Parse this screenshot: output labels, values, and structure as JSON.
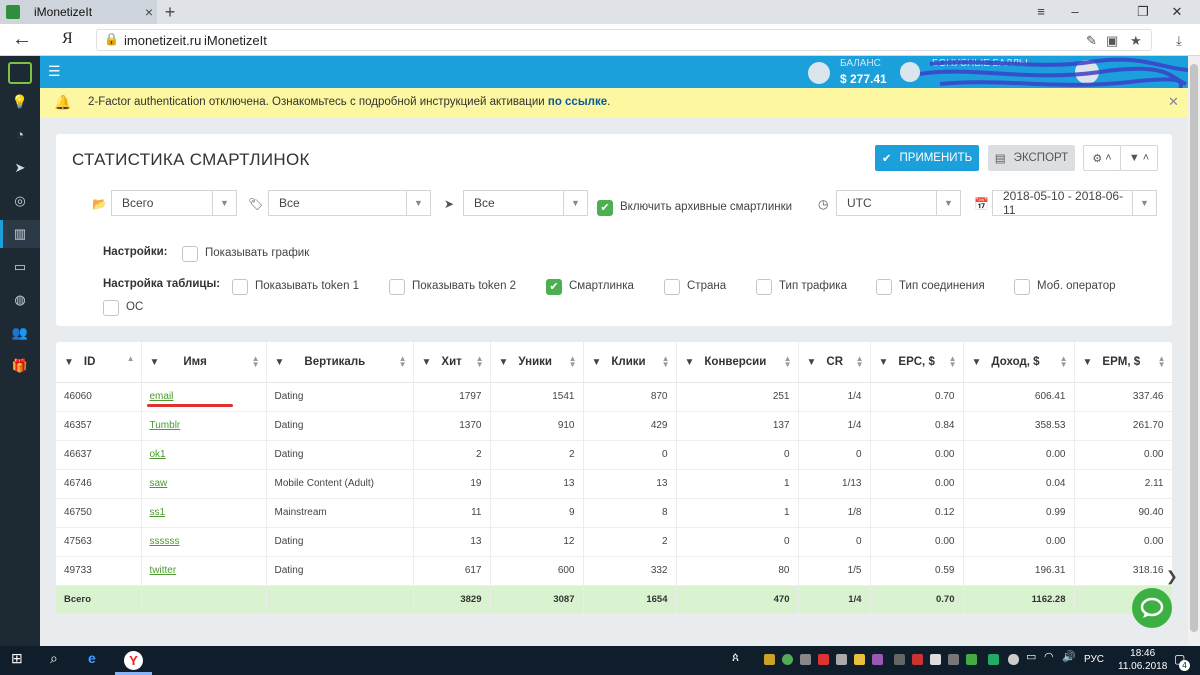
{
  "browser": {
    "tab_title": "iMonetizeIt",
    "url_domain": "imonetizeit.ru",
    "url_title": "iMonetizeIt",
    "yandex_label": "Я"
  },
  "topbar": {
    "balance_label": "БАЛАНС",
    "balance_value": "$ 277.41",
    "bonus_label": "БОНУСНЫЕ БАЛЛЫ"
  },
  "alert": {
    "text": "2-Factor authentication отключена. Ознакомьтесь с подробной инструкцией активации ",
    "link": "по ссылке",
    "tail": "."
  },
  "page": {
    "title": "СТАТИСТИКА СМАРТЛИНОК",
    "apply_label": "ПРИМЕНИТЬ",
    "export_label": "ЭКСПОРТ"
  },
  "filters": {
    "select1": "Всего",
    "select2": "Все",
    "select3": "Все",
    "archive_label": "Включить архивные смартлинки",
    "archive_checked": true,
    "timezone": "UTC",
    "date_range": "2018-05-10 - 2018-06-11"
  },
  "settings": {
    "label": "Настройки:",
    "show_chart": "Показывать график",
    "table_label": "Настройка таблицы:",
    "options": [
      {
        "label": "Показывать token 1",
        "checked": false
      },
      {
        "label": "Показывать token 2",
        "checked": false
      },
      {
        "label": "Смартлинка",
        "checked": true
      },
      {
        "label": "Страна",
        "checked": false
      },
      {
        "label": "Тип трафика",
        "checked": false
      },
      {
        "label": "Тип соединения",
        "checked": false
      },
      {
        "label": "Моб. оператор",
        "checked": false
      },
      {
        "label": "ОС",
        "checked": false
      }
    ]
  },
  "table": {
    "columns": [
      "ID",
      "Имя",
      "Вертикаль",
      "Хит",
      "Уники",
      "Клики",
      "Конверсии",
      "CR",
      "EPC, $",
      "Доход, $",
      "EPM, $"
    ],
    "rows": [
      [
        "46060",
        "email",
        "Dating",
        "1797",
        "1541",
        "870",
        "251",
        "1/4",
        "0.70",
        "606.41",
        "337.46"
      ],
      [
        "46357",
        "Tumblr",
        "Dating",
        "1370",
        "910",
        "429",
        "137",
        "1/4",
        "0.84",
        "358.53",
        "261.70"
      ],
      [
        "46637",
        "ok1",
        "Dating",
        "2",
        "2",
        "0",
        "0",
        "0",
        "0.00",
        "0.00",
        "0.00"
      ],
      [
        "46746",
        "saw",
        "Mobile Content (Adult)",
        "19",
        "13",
        "13",
        "1",
        "1/13",
        "0.00",
        "0.04",
        "2.11"
      ],
      [
        "46750",
        "ss1",
        "Mainstream",
        "11",
        "9",
        "8",
        "1",
        "1/8",
        "0.12",
        "0.99",
        "90.40"
      ],
      [
        "47563",
        "ssssss",
        "Dating",
        "13",
        "12",
        "2",
        "0",
        "0",
        "0.00",
        "0.00",
        "0.00"
      ],
      [
        "49733",
        "twitter",
        "Dating",
        "617",
        "600",
        "332",
        "80",
        "1/5",
        "0.59",
        "196.31",
        "318.16"
      ]
    ],
    "total": [
      "Всего",
      "",
      "",
      "3829",
      "3087",
      "1654",
      "470",
      "1/4",
      "0.70",
      "1162.28",
      ""
    ]
  },
  "taskbar": {
    "lang": "РУС",
    "time": "18:46",
    "date": "11.06.2018",
    "notif_count": "4"
  },
  "colors": {
    "accent": "#1ca0dc",
    "sidebar": "#1e2a33",
    "success": "#4caf50",
    "alert_bg": "#fcf7a0",
    "total_row": "#d9f2cf"
  }
}
